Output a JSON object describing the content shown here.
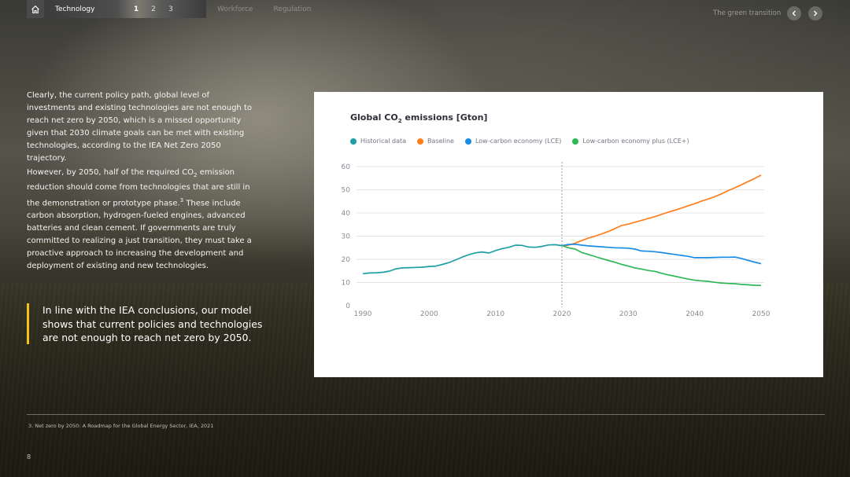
{
  "nav": {
    "active_tab": "Technology",
    "pages": [
      "1",
      "2",
      "3"
    ],
    "current_page": "1",
    "other_tabs": [
      "Workforce",
      "Regulation"
    ],
    "section_title": "The green transition"
  },
  "body": {
    "paragraph1": "Clearly, the current policy path, global level of investments and existing technologies are not enough to reach net zero by 2050, which is a missed opportunity given that 2030 climate goals can be met with existing technologies, according to the IEA Net Zero 2050 trajectory.",
    "paragraph2_a": "However, by 2050, half of the required CO",
    "paragraph2_sub": "2",
    "paragraph2_b": " emission reduction should come from technologies that are still in the demonstration or prototype phase.",
    "paragraph2_sup": "3",
    "paragraph2_c": " These include carbon absorption, hydrogen-fueled engines, advanced batteries and clean cement. If governments are truly committed to realizing a just transition, they must take a proactive approach to increasing the development and deployment of existing and new technologies.",
    "quote": "In line with the IEA conclusions, our model shows that current policies and technologies are not enough to reach net zero by 2050.",
    "quote_bar_color": "#f0c419"
  },
  "footer": {
    "footnote": "3. Net zero by 2050: A Roadmap for the Global Energy Sector, IEA, 2021",
    "page_number": "8"
  },
  "chart_data": {
    "type": "line",
    "title_a": "Global CO",
    "title_sub": "2",
    "title_b": " emissions [Gton]",
    "xlabel": "",
    "ylabel": "",
    "xlim": [
      1990,
      2050
    ],
    "ylim": [
      0,
      60
    ],
    "x_ticks": [
      1990,
      2000,
      2010,
      2020,
      2030,
      2040,
      2050
    ],
    "y_ticks": [
      0,
      10,
      20,
      30,
      40,
      50,
      60
    ],
    "grid": "horizontal",
    "reference_line_x": 2020,
    "legend_position": "top-left",
    "series": [
      {
        "name": "Historical data",
        "color": "#1e9fa6",
        "points": [
          [
            1990,
            13.8
          ],
          [
            1991,
            14.1
          ],
          [
            1992,
            14.2
          ],
          [
            1993,
            14.4
          ],
          [
            1994,
            14.9
          ],
          [
            1995,
            15.9
          ],
          [
            1996,
            16.3
          ],
          [
            1997,
            16.4
          ],
          [
            1998,
            16.5
          ],
          [
            1999,
            16.6
          ],
          [
            2000,
            16.9
          ],
          [
            2001,
            17.1
          ],
          [
            2002,
            17.8
          ],
          [
            2003,
            18.6
          ],
          [
            2004,
            19.8
          ],
          [
            2005,
            21.0
          ],
          [
            2006,
            22.0
          ],
          [
            2007,
            22.8
          ],
          [
            2008,
            23.2
          ],
          [
            2009,
            22.7
          ],
          [
            2010,
            23.8
          ],
          [
            2011,
            24.6
          ],
          [
            2012,
            25.2
          ],
          [
            2013,
            26.1
          ],
          [
            2014,
            26.0
          ],
          [
            2015,
            25.3
          ],
          [
            2016,
            25.2
          ],
          [
            2017,
            25.6
          ],
          [
            2018,
            26.2
          ],
          [
            2019,
            26.3
          ],
          [
            2020,
            25.9
          ]
        ]
      },
      {
        "name": "Baseline",
        "color": "#ff7f1e",
        "points": [
          [
            2020,
            25.9
          ],
          [
            2021,
            26.1
          ],
          [
            2022,
            27.0
          ],
          [
            2023,
            28.1
          ],
          [
            2024,
            29.2
          ],
          [
            2025,
            30.0
          ],
          [
            2026,
            31.0
          ],
          [
            2027,
            32.0
          ],
          [
            2028,
            33.3
          ],
          [
            2029,
            34.6
          ],
          [
            2030,
            35.2
          ],
          [
            2031,
            36.0
          ],
          [
            2032,
            36.8
          ],
          [
            2033,
            37.6
          ],
          [
            2034,
            38.4
          ],
          [
            2035,
            39.4
          ],
          [
            2036,
            40.3
          ],
          [
            2037,
            41.2
          ],
          [
            2038,
            42.1
          ],
          [
            2039,
            43.1
          ],
          [
            2040,
            44.0
          ],
          [
            2041,
            45.1
          ],
          [
            2042,
            46.0
          ],
          [
            2043,
            47.0
          ],
          [
            2044,
            48.2
          ],
          [
            2045,
            49.6
          ],
          [
            2046,
            50.8
          ],
          [
            2047,
            52.1
          ],
          [
            2048,
            53.5
          ],
          [
            2049,
            54.8
          ],
          [
            2050,
            56.3
          ]
        ]
      },
      {
        "name": "Low-carbon economy (LCE)",
        "color": "#188ce5",
        "points": [
          [
            2020,
            25.9
          ],
          [
            2021,
            26.4
          ],
          [
            2022,
            26.5
          ],
          [
            2023,
            26.1
          ],
          [
            2024,
            25.8
          ],
          [
            2025,
            25.6
          ],
          [
            2026,
            25.4
          ],
          [
            2027,
            25.2
          ],
          [
            2028,
            25.0
          ],
          [
            2029,
            24.9
          ],
          [
            2030,
            24.8
          ],
          [
            2031,
            24.4
          ],
          [
            2032,
            23.6
          ],
          [
            2033,
            23.5
          ],
          [
            2034,
            23.3
          ],
          [
            2035,
            22.9
          ],
          [
            2036,
            22.5
          ],
          [
            2037,
            22.1
          ],
          [
            2038,
            21.7
          ],
          [
            2039,
            21.3
          ],
          [
            2040,
            20.7
          ],
          [
            2041,
            20.7
          ],
          [
            2042,
            20.7
          ],
          [
            2043,
            20.8
          ],
          [
            2044,
            20.9
          ],
          [
            2045,
            20.9
          ],
          [
            2046,
            21.0
          ],
          [
            2047,
            20.4
          ],
          [
            2048,
            19.6
          ],
          [
            2049,
            18.8
          ],
          [
            2050,
            18.1
          ]
        ]
      },
      {
        "name": "Low-carbon economy plus (LCE+)",
        "color": "#2db757",
        "points": [
          [
            2020,
            25.9
          ],
          [
            2021,
            25.0
          ],
          [
            2022,
            24.4
          ],
          [
            2023,
            22.9
          ],
          [
            2024,
            22.1
          ],
          [
            2025,
            21.2
          ],
          [
            2026,
            20.3
          ],
          [
            2027,
            19.5
          ],
          [
            2028,
            18.7
          ],
          [
            2029,
            17.8
          ],
          [
            2030,
            17.1
          ],
          [
            2031,
            16.3
          ],
          [
            2032,
            15.8
          ],
          [
            2033,
            15.2
          ],
          [
            2034,
            14.8
          ],
          [
            2035,
            14.0
          ],
          [
            2036,
            13.3
          ],
          [
            2037,
            12.7
          ],
          [
            2038,
            12.1
          ],
          [
            2039,
            11.5
          ],
          [
            2040,
            11.0
          ],
          [
            2041,
            10.7
          ],
          [
            2042,
            10.5
          ],
          [
            2043,
            10.1
          ],
          [
            2044,
            9.8
          ],
          [
            2045,
            9.6
          ],
          [
            2046,
            9.5
          ],
          [
            2047,
            9.2
          ],
          [
            2048,
            9.0
          ],
          [
            2049,
            8.8
          ],
          [
            2050,
            8.7
          ]
        ]
      }
    ]
  }
}
